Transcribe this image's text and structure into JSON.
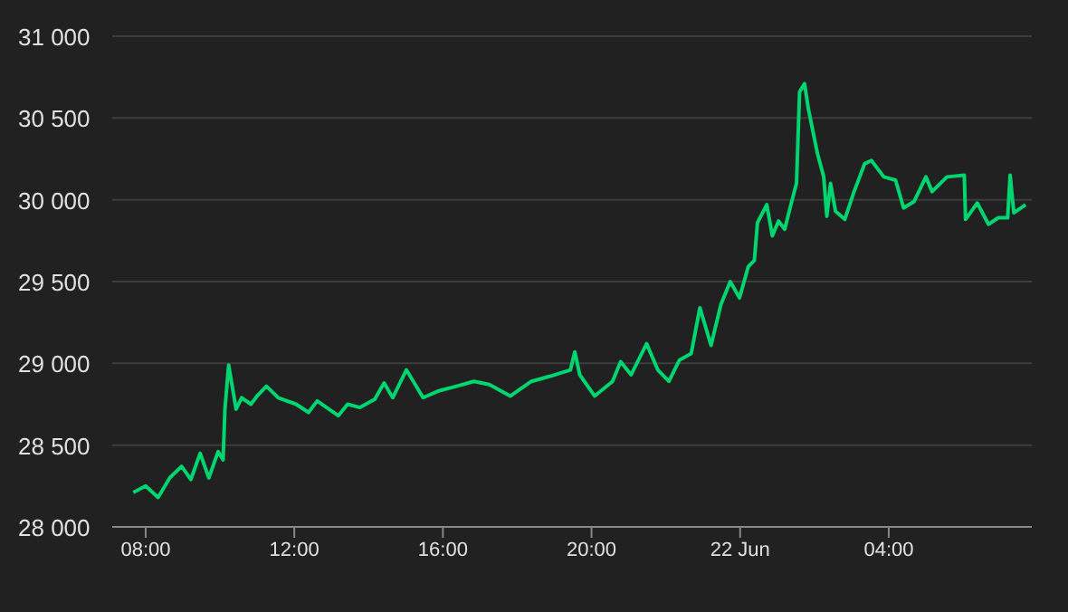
{
  "chart_data": {
    "type": "line",
    "x": [
      "--06-21T07:40",
      "--06-21T08:00",
      "--06-21T08:20",
      "--06-21T08:39",
      "--06-21T08:58",
      "--06-21T09:13",
      "--06-21T09:28",
      "--06-21T09:42",
      "--06-21T09:57",
      "--06-21T10:05",
      "--06-21T10:08",
      "--06-21T10:14",
      "--06-21T10:26",
      "--06-21T10:35",
      "--06-21T10:50",
      "--06-21T11:00",
      "--06-21T11:15",
      "--06-21T11:34",
      "--06-21T12:03",
      "--06-21T12:23",
      "--06-21T12:37",
      "--06-21T13:11",
      "--06-21T13:26",
      "--06-21T13:46",
      "--06-21T14:10",
      "--06-21T14:25",
      "--06-21T14:39",
      "--06-21T15:01",
      "--06-21T15:28",
      "--06-21T15:52",
      "--06-21T16:22",
      "--06-21T16:50",
      "--06-21T17:15",
      "--06-21T17:49",
      "--06-21T18:23",
      "--06-21T18:52",
      "--06-21T19:26",
      "--06-21T19:33",
      "--06-21T19:41",
      "--06-21T20:05",
      "--06-21T20:34",
      "--06-21T20:47",
      "--06-21T21:04",
      "--06-21T21:29",
      "--06-21T21:47",
      "--06-21T22:05",
      "--06-21T22:22",
      "--06-21T22:41",
      "--06-21T22:55",
      "--06-21T23:13",
      "--06-21T23:29",
      "--06-21T23:44",
      "--06-21T23:59",
      "--06-22T00:13",
      "--06-22T00:23",
      "--06-22T00:28",
      "--06-22T00:43",
      "--06-22T00:52",
      "--06-22T01:02",
      "--06-22T01:12",
      "--06-22T01:22",
      "--06-22T01:31",
      "--06-22T01:36",
      "--06-22T01:44",
      "--06-22T01:50",
      "--06-22T02:05",
      "--06-22T02:15",
      "--06-22T02:20",
      "--06-22T02:26",
      "--06-22T02:34",
      "--06-22T02:49",
      "--06-22T03:04",
      "--06-22T03:21",
      "--06-22T03:32",
      "--06-22T03:52",
      "--06-22T04:11",
      "--06-22T04:24",
      "--06-22T04:41",
      "--06-22T05:00",
      "--06-22T05:10",
      "--06-22T05:34",
      "--06-22T06:02",
      "--06-22T06:04",
      "--06-22T06:23",
      "--06-22T06:41",
      "--06-22T06:57",
      "--06-22T07:12",
      "--06-22T07:16",
      "--06-22T07:22",
      "--06-22T07:41"
    ],
    "series": [
      {
        "color": "#00d66f",
        "values": [
          28210,
          28250,
          28180,
          28300,
          28370,
          28290,
          28450,
          28300,
          28460,
          28410,
          28720,
          28990,
          28720,
          28790,
          28750,
          28800,
          28860,
          28790,
          28750,
          28700,
          28770,
          28680,
          28750,
          28730,
          28780,
          28880,
          28790,
          28960,
          28790,
          28830,
          28860,
          28890,
          28870,
          28800,
          28890,
          28920,
          28960,
          29070,
          28930,
          28800,
          28890,
          29010,
          28930,
          29120,
          28960,
          28890,
          29020,
          29060,
          29340,
          29110,
          29360,
          29500,
          29400,
          29590,
          29630,
          29860,
          29970,
          29780,
          29870,
          29820,
          29970,
          30100,
          30660,
          30710,
          30560,
          30280,
          30140,
          29900,
          30100,
          29930,
          29880,
          30050,
          30220,
          30240,
          30140,
          30120,
          29950,
          29990,
          30140,
          30050,
          30140,
          30150,
          29880,
          29980,
          29850,
          29890,
          29890,
          30150,
          29920,
          29970
        ]
      }
    ],
    "xlim": [
      "--06-21T07:06",
      "--06-22T07:51"
    ],
    "xticks": [
      {
        "value": "--06-21T08:00",
        "label": "08:00"
      },
      {
        "value": "--06-21T12:00",
        "label": "12:00"
      },
      {
        "value": "--06-21T16:00",
        "label": "16:00"
      },
      {
        "value": "--06-21T20:00",
        "label": "20:00"
      },
      {
        "value": "--06-22T00:00",
        "label": "22 Jun"
      },
      {
        "value": "--06-22T04:00",
        "label": "04:00"
      }
    ],
    "ylim": [
      28000,
      31000
    ],
    "yticks": [
      {
        "value": 28000,
        "label": "28 000"
      },
      {
        "value": 28500,
        "label": "28 500"
      },
      {
        "value": 29000,
        "label": "29 000"
      },
      {
        "value": 29500,
        "label": "29 500"
      },
      {
        "value": 30000,
        "label": "30 000"
      },
      {
        "value": 30500,
        "label": "30 500"
      },
      {
        "value": 31000,
        "label": "31 000"
      }
    ],
    "grid": "y",
    "marker": "none",
    "line_style": "solid"
  }
}
